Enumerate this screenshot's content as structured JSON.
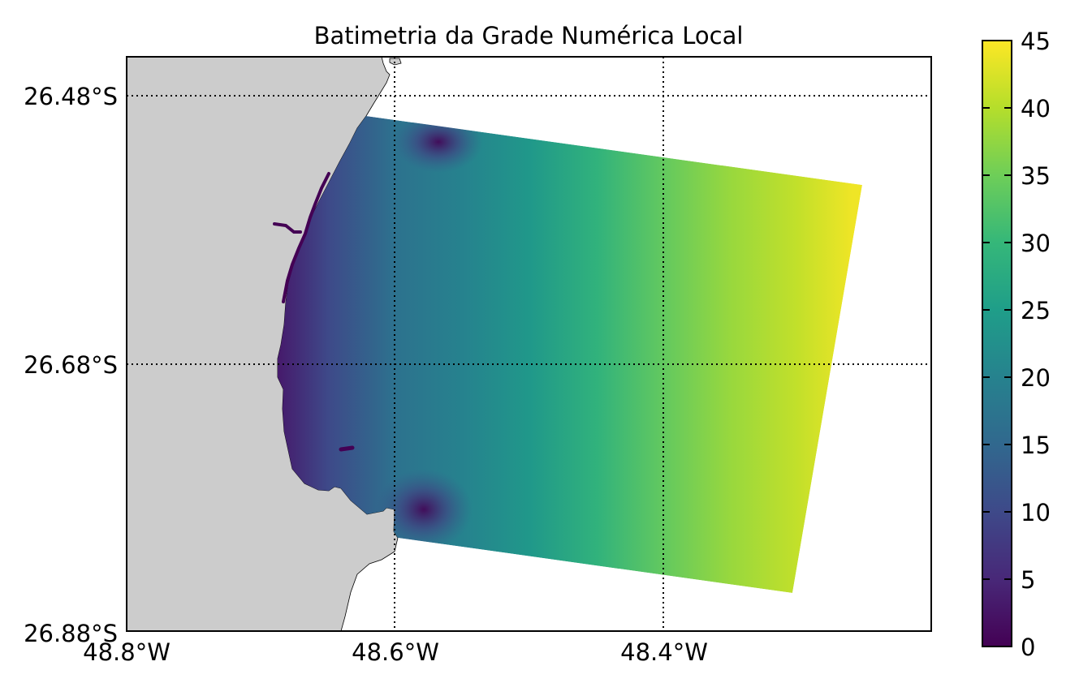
{
  "chart_data": {
    "type": "heatmap",
    "title": "Batimetria da Grade Numérica Local",
    "xlabel": "",
    "ylabel": "",
    "x_range": [
      -48.8,
      -48.2
    ],
    "y_range": [
      -26.88,
      -26.45
    ],
    "x_ticks": [
      {
        "value": -48.8,
        "label": "48.8°W"
      },
      {
        "value": -48.6,
        "label": "48.6°W"
      },
      {
        "value": -48.4,
        "label": "48.4°W"
      }
    ],
    "y_ticks": [
      {
        "value": -26.48,
        "label": "26.48°S"
      },
      {
        "value": -26.68,
        "label": "26.68°S"
      },
      {
        "value": -26.88,
        "label": "26.88°S"
      }
    ],
    "grid": "dotted at x/y ticks",
    "land_color": "#cccccc",
    "colormap": "viridis",
    "colorbar": {
      "range": [
        0,
        45
      ],
      "ticks": [
        "0",
        "5",
        "10",
        "15",
        "20",
        "25",
        "30",
        "35",
        "40",
        "45"
      ]
    },
    "grid_domain": {
      "corners": [
        {
          "lon": -48.62,
          "lat": -26.524
        },
        {
          "lon": -48.255,
          "lat": -26.573
        },
        {
          "lon": -48.305,
          "lat": -26.856
        },
        {
          "lon": -48.59,
          "lat": -26.814
        }
      ]
    },
    "depth_profile": {
      "description": "depth increases offshore (west to east)",
      "longitude": [
        -48.69,
        -48.65,
        -48.6,
        -48.55,
        -48.5,
        -48.45,
        -48.4,
        -48.35,
        -48.3,
        -48.26
      ],
      "depth": [
        3,
        10,
        17,
        20,
        24,
        29,
        34,
        38,
        41,
        44
      ]
    },
    "features": [
      {
        "name": "shallow patch",
        "lon": -48.57,
        "lat": -26.54,
        "depth": 2
      },
      {
        "name": "shallow patch",
        "lon": -48.57,
        "lat": -26.79,
        "depth": 2
      }
    ]
  },
  "colors": {
    "viridis": [
      "#440154",
      "#482878",
      "#3e4989",
      "#31688e",
      "#26828e",
      "#1f9e89",
      "#35b779",
      "#6ece58",
      "#b5de2b",
      "#fde725"
    ]
  }
}
